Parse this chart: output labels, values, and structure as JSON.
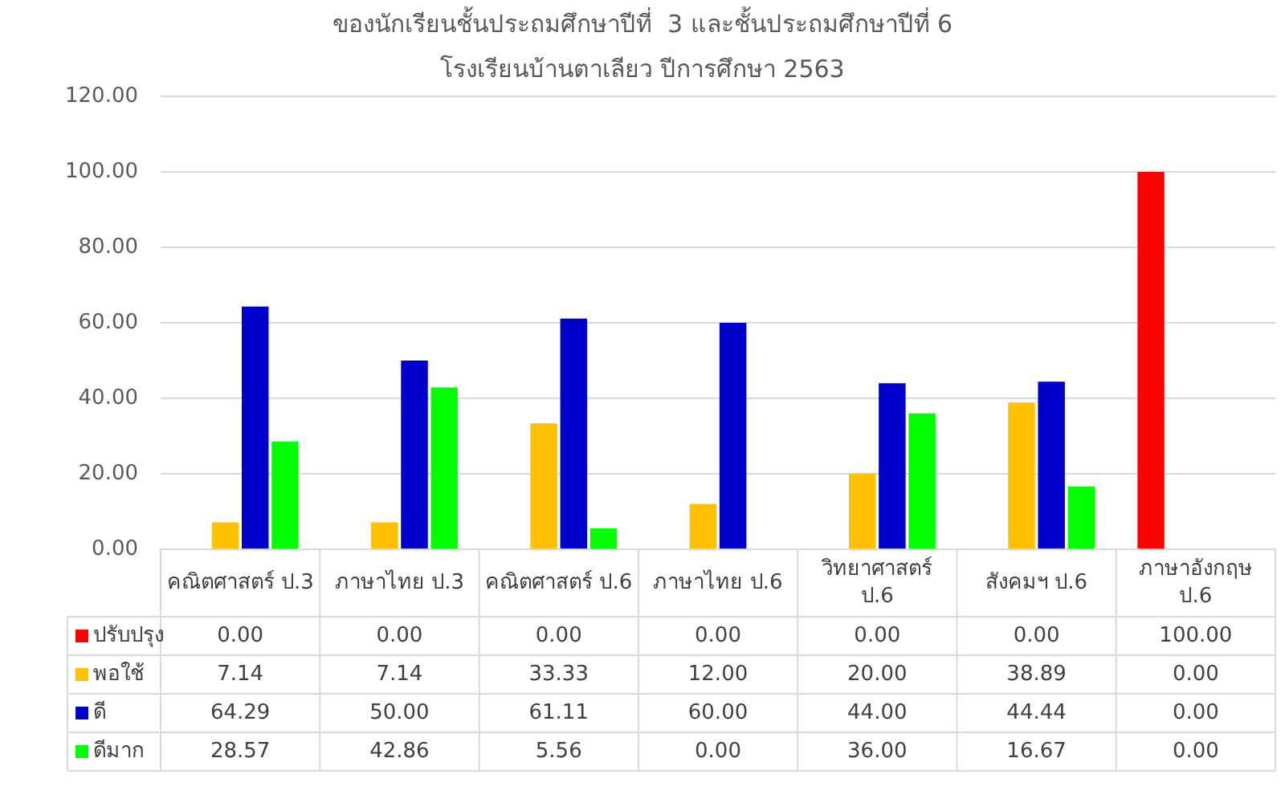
{
  "chart_data": {
    "type": "bar",
    "title": "ของนักเรียนชั้นประถมศึกษาปีที่  3 และชั้นประถมศึกษาปีที่ 6\nโรงเรียนบ้านตาเลียว ปีการศึกษา 2563",
    "categories": [
      "คณิตศาสตร์ ป.3",
      "ภาษาไทย ป.3",
      "คณิตศาสตร์ ป.6",
      "ภาษาไทย ป.6",
      "วิทยาศาสตร์ ป.6",
      "สังคมฯ ป.6",
      "ภาษาอังกฤษ ป.6"
    ],
    "series": [
      {
        "name": "ปรับปรุง",
        "color": "#ff0000",
        "values": [
          0,
          0,
          0,
          0,
          0,
          0,
          100
        ],
        "value_labels": [
          "0.00",
          "0.00",
          "0.00",
          "0.00",
          "0.00",
          "0.00",
          "100.00"
        ]
      },
      {
        "name": "พอใช้",
        "color": "#ffc000",
        "values": [
          7.14,
          7.14,
          33.33,
          12,
          20,
          38.89,
          0
        ],
        "value_labels": [
          "7.14",
          "7.14",
          "33.33",
          "12.00",
          "20.00",
          "38.89",
          "0.00"
        ]
      },
      {
        "name": "ดี",
        "color": "#0000cc",
        "values": [
          64.29,
          50,
          61.11,
          60,
          44,
          44.44,
          0
        ],
        "value_labels": [
          "64.29",
          "50.00",
          "61.11",
          "60.00",
          "44.00",
          "44.44",
          "0.00"
        ]
      },
      {
        "name": "ดีมาก",
        "color": "#00ff00",
        "values": [
          28.57,
          42.86,
          5.56,
          0,
          36,
          16.67,
          0
        ],
        "value_labels": [
          "28.57",
          "42.86",
          "5.56",
          "0.00",
          "36.00",
          "16.67",
          "0.00"
        ]
      }
    ],
    "ylim": [
      0,
      120
    ],
    "yticks": [
      {
        "value": 0,
        "label": "0.00"
      },
      {
        "value": 20,
        "label": "20.00"
      },
      {
        "value": 40,
        "label": "40.00"
      },
      {
        "value": 60,
        "label": "60.00"
      },
      {
        "value": 80,
        "label": "80.00"
      },
      {
        "value": 100,
        "label": "100.00"
      },
      {
        "value": 120,
        "label": "120.00"
      }
    ],
    "grid": "y",
    "legend": "bottom"
  }
}
